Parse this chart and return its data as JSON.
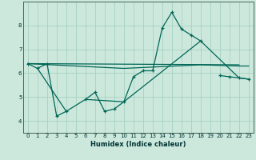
{
  "title": "",
  "xlabel": "Humidex (Indice chaleur)",
  "background_color": "#cce8dd",
  "grid_color": "#aad4c4",
  "line_color": "#006655",
  "xlim": [
    -0.5,
    23.5
  ],
  "ylim": [
    3.5,
    9.0
  ],
  "yticks": [
    4,
    5,
    6,
    7,
    8
  ],
  "xticks": [
    0,
    1,
    2,
    3,
    4,
    5,
    6,
    7,
    8,
    9,
    10,
    11,
    12,
    13,
    14,
    15,
    16,
    17,
    18,
    19,
    20,
    21,
    22,
    23
  ],
  "series0": {
    "x": [
      0,
      1,
      2,
      3,
      4,
      6,
      7,
      8,
      9,
      10,
      11,
      12,
      13,
      14,
      15,
      16,
      17,
      18,
      20,
      21,
      22,
      23
    ],
    "y": [
      6.4,
      6.2,
      6.4,
      4.2,
      4.4,
      4.9,
      5.2,
      4.4,
      4.5,
      4.8,
      5.85,
      6.1,
      6.1,
      7.9,
      8.55,
      7.85,
      7.6,
      7.35,
      5.9,
      5.85,
      5.8,
      5.75
    ],
    "segments": [
      {
        "x": [
          0,
          1,
          2,
          3,
          4
        ],
        "y": [
          6.4,
          6.2,
          6.4,
          4.2,
          4.4
        ]
      },
      {
        "x": [
          6,
          7,
          8,
          9,
          10,
          11,
          12,
          13,
          14,
          15,
          16,
          17,
          18
        ],
        "y": [
          4.9,
          5.2,
          4.4,
          4.5,
          4.8,
          5.85,
          6.1,
          6.1,
          7.9,
          8.55,
          7.85,
          7.6,
          7.35
        ]
      },
      {
        "x": [
          20,
          21,
          22,
          23
        ],
        "y": [
          5.9,
          5.85,
          5.8,
          5.75
        ]
      }
    ]
  },
  "series1": {
    "x": [
      0,
      22
    ],
    "y": [
      6.4,
      6.35
    ]
  },
  "series2": {
    "x": [
      0,
      10,
      18,
      22,
      23
    ],
    "y": [
      6.4,
      6.2,
      6.35,
      6.3,
      6.3
    ]
  },
  "series3": {
    "x": [
      1,
      4,
      6,
      10,
      18,
      22,
      23
    ],
    "y": [
      6.2,
      4.4,
      4.9,
      4.8,
      7.35,
      5.8,
      5.75
    ]
  }
}
